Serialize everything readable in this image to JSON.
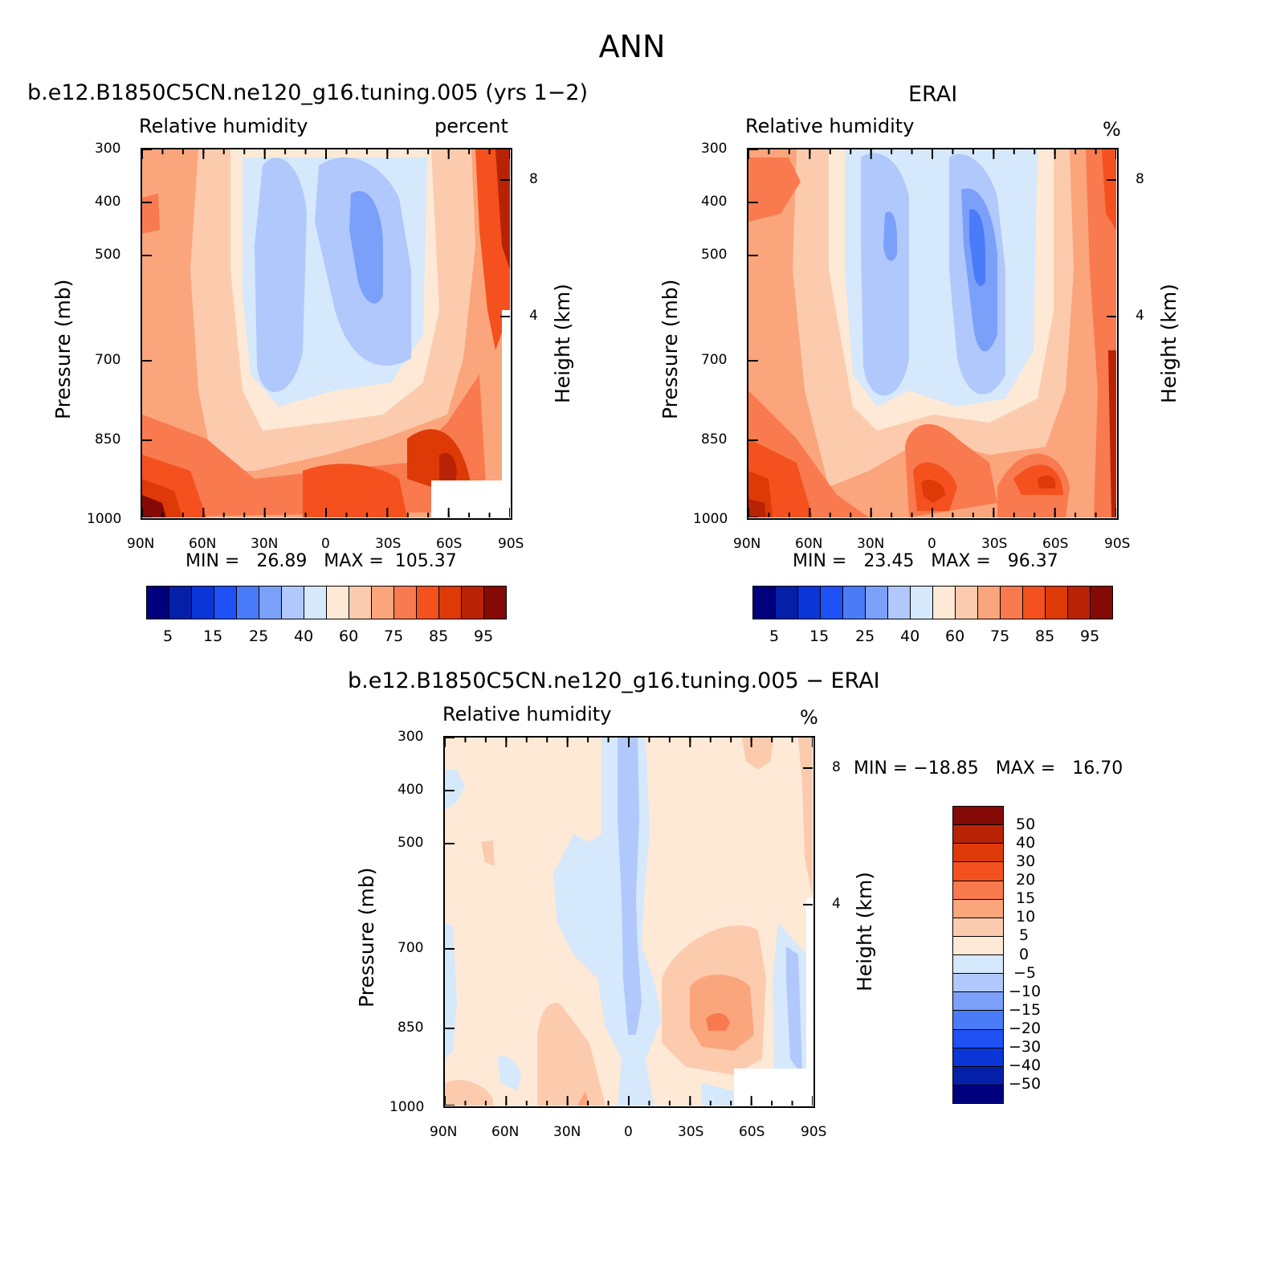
{
  "figure_title": "ANN",
  "panels": [
    {
      "id": "model",
      "title": "b.e12.B1850C5CN.ne120_g16.tuning.005 (yrs 1−2)",
      "field_label": "Relative humidity",
      "units_label": "percent",
      "y_label": "Pressure (mb)",
      "y2_label": "Height (km)",
      "minmax": "MIN =   26.89   MAX =  105.37"
    },
    {
      "id": "obs",
      "title": "ERAI",
      "field_label": "Relative humidity",
      "units_label": "%",
      "y_label": "Pressure (mb)",
      "y2_label": "Height (km)",
      "minmax": "MIN =   23.45   MAX =   96.37"
    },
    {
      "id": "diff",
      "title": "b.e12.B1850C5CN.ne120_g16.tuning.005 − ERAI",
      "field_label": "Relative humidity",
      "units_label": "%",
      "y_label": "Pressure (mb)",
      "y2_label": "Height (km)",
      "minmax": "MIN = −18.85   MAX =   16.70"
    }
  ],
  "axes": {
    "x_ticks": [
      "90N",
      "60N",
      "30N",
      "0",
      "30S",
      "60S",
      "90S"
    ],
    "y_ticks": [
      "300",
      "400",
      "500",
      "700",
      "850",
      "1000"
    ],
    "y2_ticks": [
      "8",
      "4"
    ]
  },
  "colorbars": {
    "rh": {
      "colors": [
        "#00007f",
        "#0520a8",
        "#0a36d8",
        "#1e50f5",
        "#4a7bf8",
        "#7aa0fa",
        "#b0c8fc",
        "#d6e8fb",
        "#fde9d6",
        "#fccbae",
        "#fba57c",
        "#f87a4e",
        "#f4511e",
        "#dd3a08",
        "#b82306",
        "#850a05"
      ],
      "labels": [
        "5",
        "15",
        "25",
        "40",
        "60",
        "75",
        "85",
        "95"
      ]
    },
    "diff": {
      "colors": [
        "#850a05",
        "#b82306",
        "#dd3a08",
        "#f4511e",
        "#f87a4e",
        "#fba57c",
        "#fccbae",
        "#fde9d6",
        "#d6e8fb",
        "#b0c8fc",
        "#7aa0fa",
        "#4a7bf8",
        "#1e50f5",
        "#0a36d8",
        "#0520a8",
        "#00007f"
      ],
      "labels": [
        "50",
        "40",
        "30",
        "20",
        "15",
        "10",
        "5",
        "0",
        "−5",
        "−10",
        "−15",
        "−20",
        "−30",
        "−40",
        "−50"
      ]
    }
  },
  "chart_data": [
    {
      "type": "heatmap",
      "panel": "model",
      "title": "b.e12.B1850C5CN.ne120_g16.tuning.005 (yrs 1−2)",
      "variable": "Relative humidity",
      "units": "percent",
      "xlabel": "",
      "ylabel": "Pressure (mb)",
      "y2label": "Height (km)",
      "x": [
        "90N",
        "60N",
        "30N",
        "0",
        "30S",
        "60S",
        "90S"
      ],
      "y": [
        300,
        400,
        500,
        700,
        850,
        1000
      ],
      "min": 26.89,
      "max": 105.37,
      "levels": [
        5,
        10,
        15,
        20,
        25,
        30,
        40,
        50,
        60,
        70,
        75,
        80,
        85,
        90,
        95
      ]
    },
    {
      "type": "heatmap",
      "panel": "obs",
      "title": "ERAI",
      "variable": "Relative humidity",
      "units": "%",
      "xlabel": "",
      "ylabel": "Pressure (mb)",
      "y2label": "Height (km)",
      "x": [
        "90N",
        "60N",
        "30N",
        "0",
        "30S",
        "60S",
        "90S"
      ],
      "y": [
        300,
        400,
        500,
        700,
        850,
        1000
      ],
      "min": 23.45,
      "max": 96.37,
      "levels": [
        5,
        10,
        15,
        20,
        25,
        30,
        40,
        50,
        60,
        70,
        75,
        80,
        85,
        90,
        95
      ]
    },
    {
      "type": "heatmap",
      "panel": "diff",
      "title": "b.e12.B1850C5CN.ne120_g16.tuning.005 − ERAI",
      "variable": "Relative humidity",
      "units": "%",
      "xlabel": "",
      "ylabel": "Pressure (mb)",
      "y2label": "Height (km)",
      "x": [
        "90N",
        "60N",
        "30N",
        "0",
        "30S",
        "60S",
        "90S"
      ],
      "y": [
        300,
        400,
        500,
        700,
        850,
        1000
      ],
      "min": -18.85,
      "max": 16.7,
      "levels": [
        -50,
        -40,
        -30,
        -20,
        -15,
        -10,
        -5,
        0,
        5,
        10,
        15,
        20,
        30,
        40,
        50
      ]
    }
  ]
}
